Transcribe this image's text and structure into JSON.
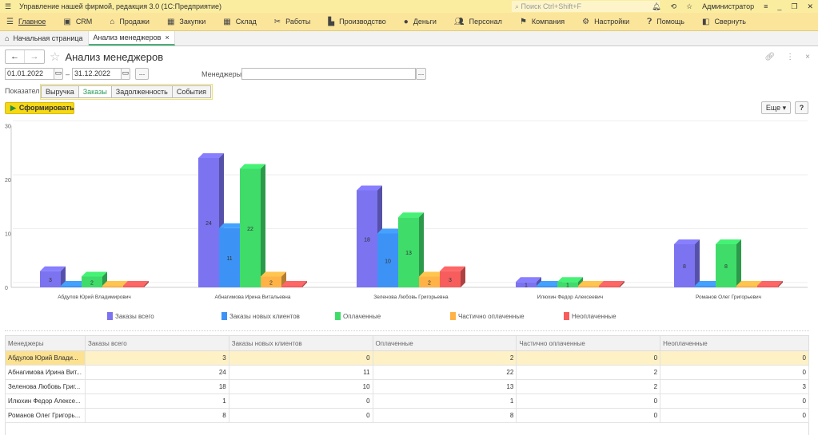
{
  "app": {
    "title": "Управление нашей фирмой, редакция 3.0  (1С:Предприятие)",
    "search_placeholder": "Поиск Ctrl+Shift+F",
    "user": "Администратор"
  },
  "menu": [
    {
      "label": "Главное",
      "icon": "menu-icon"
    },
    {
      "label": "CRM",
      "icon": "crm-icon"
    },
    {
      "label": "Продажи",
      "icon": "sales-icon"
    },
    {
      "label": "Закупки",
      "icon": "purchases-icon"
    },
    {
      "label": "Склад",
      "icon": "warehouse-icon"
    },
    {
      "label": "Работы",
      "icon": "works-icon"
    },
    {
      "label": "Производство",
      "icon": "production-icon"
    },
    {
      "label": "Деньги",
      "icon": "money-icon"
    },
    {
      "label": "Персонал",
      "icon": "staff-icon"
    },
    {
      "label": "Компания",
      "icon": "flag-icon"
    },
    {
      "label": "Настройки",
      "icon": "gear-icon"
    },
    {
      "label": "Помощь",
      "icon": "help-icon"
    },
    {
      "label": "Свернуть",
      "icon": "collapse-icon"
    }
  ],
  "tabs": {
    "home": "Начальная страница",
    "active": "Анализ менеджеров"
  },
  "form": {
    "title": "Анализ менеджеров",
    "date_from": "01.01.2022",
    "date_sep": "–",
    "date_to": "31.12.2022",
    "dots": "...",
    "managers_label": "Менеджеры:",
    "managers_value": "",
    "indicator_label": "Показатель:",
    "indicators": [
      "Выручка",
      "Заказы",
      "Задолженность",
      "События"
    ],
    "selected_indicator": "Заказы",
    "run": "Сформировать",
    "more": "Еще",
    "help": "?"
  },
  "colors": {
    "total": "#7b73f0",
    "new": "#3d93f5",
    "paid": "#3fdc6a",
    "partial": "#ffb347",
    "unpaid": "#f75d5d"
  },
  "chart_data": {
    "type": "bar",
    "categories": [
      "Абдулов Юрий Владимирович",
      "Абнагимова Ирина Витальевна",
      "Зеленова Любовь Григорьевна",
      "Илюхин Федор Алексеевич",
      "Романов Олег Григорьевич"
    ],
    "series": [
      {
        "name": "Заказы всего",
        "values": [
          3,
          24,
          18,
          1,
          8
        ]
      },
      {
        "name": "Заказы новых клиентов",
        "values": [
          0,
          11,
          10,
          0,
          0
        ]
      },
      {
        "name": "Оплаченные",
        "values": [
          2,
          22,
          13,
          1,
          8
        ]
      },
      {
        "name": "Частично оплаченные",
        "values": [
          0,
          2,
          2,
          0,
          0
        ]
      },
      {
        "name": "Неоплаченные",
        "values": [
          0,
          0,
          3,
          0,
          0
        ]
      }
    ],
    "yticks": [
      "0",
      "10",
      "20",
      "30"
    ],
    "ylim": [
      0,
      30
    ],
    "legend": "bottom"
  },
  "table": {
    "headers": [
      "Менеджеры",
      "Заказы всего",
      "Заказы новых клиентов",
      "Оплаченные",
      "Частично оплаченные",
      "Неоплаченные"
    ],
    "rows": [
      [
        "Абдулов Юрий Влади...",
        "3",
        "0",
        "2",
        "0",
        "0"
      ],
      [
        "Абнагимова Ирина Вит...",
        "24",
        "11",
        "22",
        "2",
        "0"
      ],
      [
        "Зеленова Любовь Григ...",
        "18",
        "10",
        "13",
        "2",
        "3"
      ],
      [
        "Илюхин Федор Алексе...",
        "1",
        "0",
        "1",
        "0",
        "0"
      ],
      [
        "Романов Олег Григорь...",
        "8",
        "0",
        "8",
        "0",
        "0"
      ]
    ]
  }
}
